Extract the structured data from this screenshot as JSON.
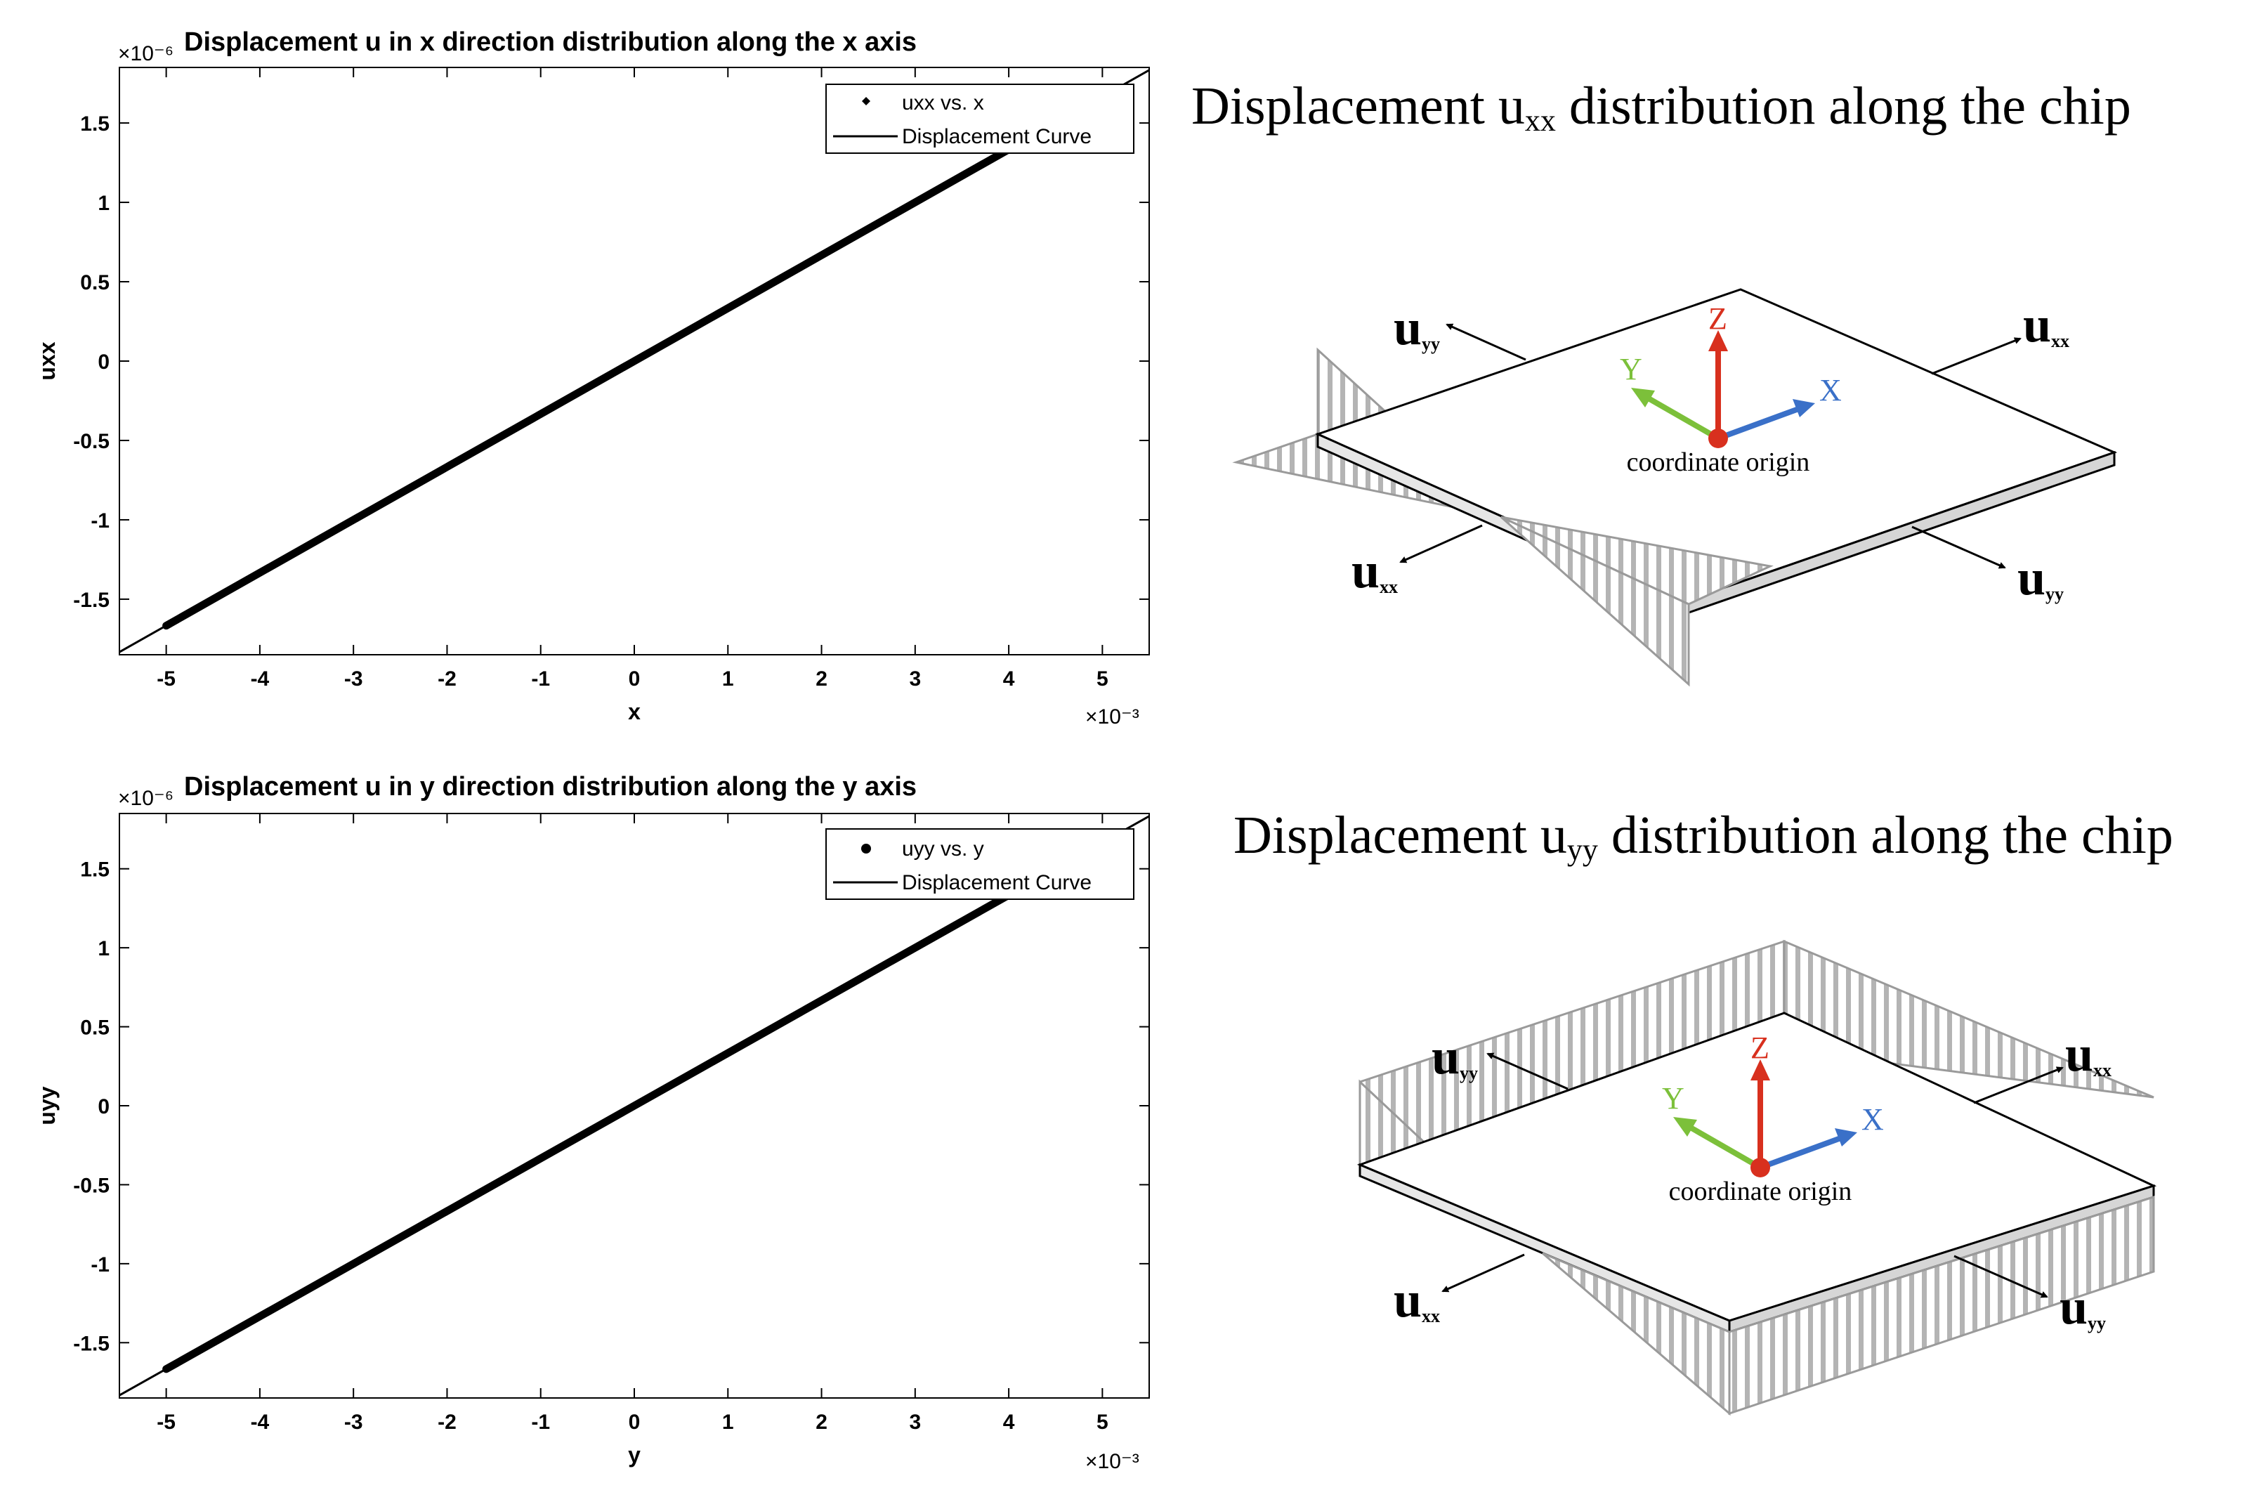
{
  "chart_data": [
    {
      "type": "line",
      "title": "Displacement u in x direction distribution along the x axis",
      "xlabel": "x",
      "ylabel": "uxx",
      "x_exponent": "×10⁻³",
      "y_exponent": "×10⁻⁶",
      "xlim": [
        -5.5,
        5.5
      ],
      "ylim": [
        -1.85,
        1.85
      ],
      "xticks": [
        -5,
        -4,
        -3,
        -2,
        -1,
        0,
        1,
        2,
        3,
        4,
        5
      ],
      "yticks": [
        -1.5,
        -1,
        -0.5,
        0,
        0.5,
        1,
        1.5
      ],
      "xtick_labels": [
        "-5",
        "-4",
        "-3",
        "-2",
        "-1",
        "0",
        "1",
        "2",
        "3",
        "4",
        "5"
      ],
      "ytick_labels": [
        "-1.5",
        "-1",
        "-0.5",
        "0",
        "0.5",
        "1",
        "1.5"
      ],
      "series": [
        {
          "name": "uxx vs. x",
          "style": "points",
          "x": [
            -5,
            5
          ],
          "y": [
            -1.667,
            1.667
          ]
        },
        {
          "name": "Displacement Curve",
          "style": "line",
          "x": [
            -5.5,
            5.5
          ],
          "y": [
            -1.833,
            1.833
          ]
        }
      ],
      "legend": "top-right",
      "grid": false
    },
    {
      "type": "line",
      "title": "Displacement u in y direction distribution along the y axis",
      "xlabel": "y",
      "ylabel": "uyy",
      "x_exponent": "×10⁻³",
      "y_exponent": "×10⁻⁶",
      "xlim": [
        -5.5,
        5.5
      ],
      "ylim": [
        -1.85,
        1.85
      ],
      "xticks": [
        -5,
        -4,
        -3,
        -2,
        -1,
        0,
        1,
        2,
        3,
        4,
        5
      ],
      "yticks": [
        -1.5,
        -1,
        -0.5,
        0,
        0.5,
        1,
        1.5
      ],
      "xtick_labels": [
        "-5",
        "-4",
        "-3",
        "-2",
        "-1",
        "0",
        "1",
        "2",
        "3",
        "4",
        "5"
      ],
      "ytick_labels": [
        "-1.5",
        "-1",
        "-0.5",
        "0",
        "0.5",
        "1",
        "1.5"
      ],
      "series": [
        {
          "name": "uyy vs. y",
          "style": "points",
          "x": [
            -5,
            5
          ],
          "y": [
            -1.667,
            1.667
          ]
        },
        {
          "name": "Displacement Curve",
          "style": "line",
          "x": [
            -5.5,
            5.5
          ],
          "y": [
            -1.833,
            1.833
          ]
        }
      ],
      "legend": "top-right",
      "grid": false
    }
  ],
  "diagrams": [
    {
      "title_main": "Displacement u",
      "title_sub": "xx",
      "title_rest": " distribution along the chip",
      "origin_label": "coordinate origin",
      "axis_x": "X",
      "axis_y": "Y",
      "axis_z": "Z",
      "label_u": "u",
      "sub_xx": "xx",
      "sub_yy": "yy"
    },
    {
      "title_main": "Displacement u",
      "title_sub": "yy",
      "title_rest": " distribution along the chip",
      "origin_label": "coordinate origin",
      "axis_x": "X",
      "axis_y": "Y",
      "axis_z": "Z",
      "label_u": "u",
      "sub_xx": "xx",
      "sub_yy": "yy"
    }
  ],
  "colors": {
    "axis_x": "#3a70c8",
    "axis_y": "#7cc03a",
    "axis_z": "#d8301e",
    "origin": "#d8301e",
    "hatch": "#9a9a9a"
  }
}
